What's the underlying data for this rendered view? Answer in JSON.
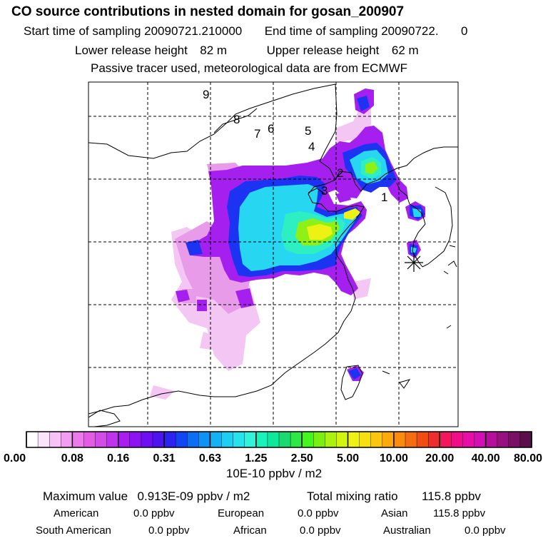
{
  "header": {
    "title": "CO  source contributions in nested domain for gosan_200907",
    "start_label": "Start time of sampling",
    "start_value": "20090721.210000",
    "end_label": "End time of sampling",
    "end_value": "20090722.",
    "end_extra": "0",
    "lower_label": "Lower release height",
    "lower_value": "82 m",
    "upper_label": "Upper release height",
    "upper_value": "62 m",
    "note": "Passive tracer used, meteorological data are from ECMWF"
  },
  "map": {
    "number_labels": [
      "1",
      "2",
      "3",
      "4",
      "5",
      "6",
      "7",
      "8",
      "9"
    ],
    "receptor_icon": "asterisk-receptor-icon"
  },
  "colorbar": {
    "tick_labels": [
      "0.00",
      "0.08",
      "0.16",
      "0.31",
      "0.63",
      "1.25",
      "2.50",
      "5.00",
      "10.00",
      "20.00",
      "40.00",
      "80.00"
    ],
    "colors": [
      "#ffffff",
      "#fbe3fb",
      "#f6c3f6",
      "#f19df1",
      "#ec7aec",
      "#e25ce6",
      "#d34ce8",
      "#bf33ee",
      "#a81ef0",
      "#8c13f2",
      "#6d0ff2",
      "#4d14f0",
      "#2e22f2",
      "#1246f5",
      "#0b6ef5",
      "#0e92f5",
      "#14b2f5",
      "#1ecff2",
      "#27e2ea",
      "#33f2d9",
      "#19f2b8",
      "#0fe89a",
      "#19d96f",
      "#2ee846",
      "#47f51e",
      "#7af012",
      "#aaf20f",
      "#d2f50f",
      "#eef214",
      "#f6e014",
      "#fac60f",
      "#fca90c",
      "#fb8b0c",
      "#f66c10",
      "#f04d14",
      "#ee2e2e",
      "#f2175c",
      "#f00e88",
      "#e60ea6",
      "#d10fb4",
      "#b50f9c",
      "#96107f",
      "#781064",
      "#5a0e4a"
    ],
    "unit_label": "10E-10 ppbv / m2"
  },
  "summary": {
    "max_label": "Maximum value",
    "max_value": "0.913E-09 ppbv / m2",
    "total_label": "Total mixing ratio",
    "total_value": "115.8 ppbv",
    "regions": [
      {
        "name": "American",
        "value": "0.0 ppbv"
      },
      {
        "name": "European",
        "value": "0.0 ppbv"
      },
      {
        "name": "Asian",
        "value": "115.8 ppbv"
      },
      {
        "name": "South American",
        "value": "0.0 ppbv"
      },
      {
        "name": "African",
        "value": "0.0 ppbv"
      },
      {
        "name": "Australian",
        "value": "0.0 ppbv"
      }
    ]
  }
}
